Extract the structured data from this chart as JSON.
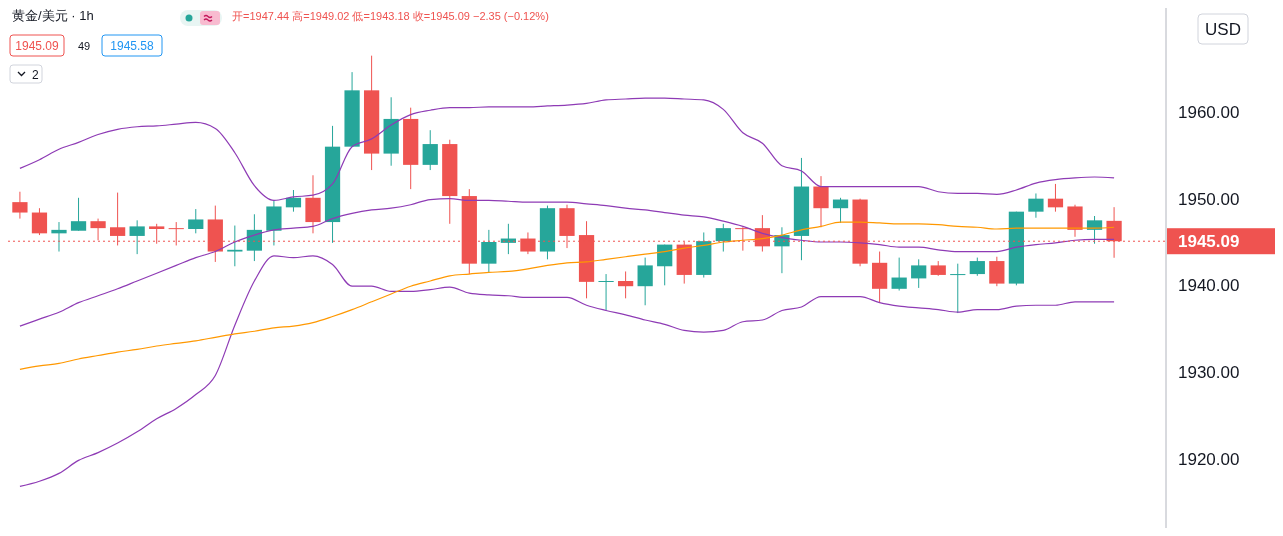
{
  "chart_data": {
    "type": "candlestick",
    "title": "黄金/美元 · 1h",
    "subtitle": "开=1947.44 高=1949.02 低=1943.18 收=1945.09 −2.35 (−0.12%)",
    "annotations": [
      "1945.09",
      "49",
      "1945.58",
      "2",
      "USD"
    ],
    "categories": [
      null,
      null,
      null,
      null,
      null,
      null,
      null,
      null,
      null,
      null,
      null,
      null,
      null,
      null,
      null,
      null,
      null,
      null,
      null,
      null,
      null,
      null,
      null,
      null,
      null,
      null,
      null,
      null,
      null,
      null,
      null,
      null,
      null,
      null,
      null,
      null,
      null,
      null,
      null,
      null,
      null,
      null,
      null,
      null,
      null,
      null,
      null,
      null,
      null,
      null,
      null,
      null,
      null,
      null,
      null,
      null,
      null
    ],
    "ohlc": [
      [
        1949.6,
        1950.8,
        1947.7,
        1948.4
      ],
      [
        1948.4,
        1948.9,
        1945.8,
        1946.0
      ],
      [
        1946.0,
        1947.3,
        1943.9,
        1946.4
      ],
      [
        1946.3,
        1950.1,
        1946.3,
        1947.4
      ],
      [
        1947.4,
        1947.7,
        1945.2,
        1946.6
      ],
      [
        1946.7,
        1950.7,
        1944.6,
        1945.7
      ],
      [
        1945.7,
        1947.5,
        1943.6,
        1946.8
      ],
      [
        1946.8,
        1947.1,
        1944.8,
        1946.5
      ],
      [
        1946.6,
        1947.3,
        1944.6,
        1946.5
      ],
      [
        1946.5,
        1948.8,
        1946.0,
        1947.6
      ],
      [
        1947.6,
        1949.2,
        1942.7,
        1943.9
      ],
      [
        1943.9,
        1946.9,
        1942.2,
        1944.1
      ],
      [
        1944.0,
        1948.2,
        1942.8,
        1946.4
      ],
      [
        1946.3,
        1949.8,
        1944.6,
        1949.1
      ],
      [
        1949.0,
        1951.0,
        1948.5,
        1950.1
      ],
      [
        1950.1,
        1952.7,
        1946.0,
        1947.3
      ],
      [
        1947.3,
        1958.4,
        1944.9,
        1956.0
      ],
      [
        1956.0,
        1964.6,
        1956.0,
        1962.5
      ],
      [
        1962.5,
        1966.5,
        1953.3,
        1955.2
      ],
      [
        1955.2,
        1961.7,
        1953.8,
        1959.2
      ],
      [
        1959.2,
        1960.5,
        1951.1,
        1953.9
      ],
      [
        1953.9,
        1957.9,
        1953.3,
        1956.3
      ],
      [
        1956.3,
        1956.8,
        1947.1,
        1950.3
      ],
      [
        1950.3,
        1951.1,
        1941.3,
        1942.5
      ],
      [
        1942.5,
        1946.4,
        1941.5,
        1945.0
      ],
      [
        1944.9,
        1947.1,
        1943.6,
        1945.4
      ],
      [
        1945.4,
        1946.1,
        1943.6,
        1943.9
      ],
      [
        1943.9,
        1949.2,
        1943.0,
        1948.9
      ],
      [
        1948.9,
        1949.3,
        1944.3,
        1945.7
      ],
      [
        1945.8,
        1947.4,
        1938.5,
        1940.4
      ],
      [
        1940.4,
        1941.3,
        1937.1,
        1940.5
      ],
      [
        1940.5,
        1941.6,
        1938.5,
        1939.9
      ],
      [
        1939.9,
        1943.2,
        1937.7,
        1942.3
      ],
      [
        1942.2,
        1944.7,
        1940.0,
        1944.7
      ],
      [
        1944.7,
        1945.0,
        1940.2,
        1941.2
      ],
      [
        1941.2,
        1946.1,
        1940.9,
        1945.1
      ],
      [
        1945.1,
        1947.1,
        1943.9,
        1946.6
      ],
      [
        1946.6,
        1946.7,
        1944.0,
        1946.5
      ],
      [
        1946.6,
        1948.1,
        1943.9,
        1944.5
      ],
      [
        1944.5,
        1946.7,
        1941.4,
        1945.8
      ],
      [
        1945.7,
        1954.7,
        1942.9,
        1951.4
      ],
      [
        1951.4,
        1952.6,
        1946.7,
        1948.9
      ],
      [
        1948.9,
        1950.1,
        1947.2,
        1949.9
      ],
      [
        1949.9,
        1950.0,
        1942.2,
        1942.5
      ],
      [
        1942.6,
        1943.9,
        1938.0,
        1939.6
      ],
      [
        1939.6,
        1943.2,
        1939.4,
        1940.9
      ],
      [
        1940.8,
        1943.0,
        1939.7,
        1942.3
      ],
      [
        1942.3,
        1942.8,
        1941.1,
        1941.2
      ],
      [
        1941.2,
        1942.5,
        1936.8,
        1941.3
      ],
      [
        1941.3,
        1943.2,
        1941.1,
        1942.8
      ],
      [
        1942.8,
        1943.3,
        1939.9,
        1940.2
      ],
      [
        1940.2,
        1948.5,
        1940.0,
        1948.5
      ],
      [
        1948.5,
        1950.6,
        1947.8,
        1950.0
      ],
      [
        1950.0,
        1951.7,
        1948.5,
        1949.0
      ],
      [
        1949.1,
        1949.3,
        1945.6,
        1946.4
      ],
      [
        1946.4,
        1948.0,
        1944.8,
        1947.5
      ],
      [
        1947.44,
        1949.02,
        1943.18,
        1945.09
      ]
    ],
    "colors": [
      "#ef5350",
      "#ef5350",
      "#26a69a",
      "#26a69a",
      "#ef5350",
      "#ef5350",
      "#26a69a",
      "#ef5350",
      "#ef5350",
      "#26a69a",
      "#ef5350",
      "#26a69a",
      "#26a69a",
      "#26a69a",
      "#26a69a",
      "#ef5350",
      "#26a69a",
      "#26a69a",
      "#ef5350",
      "#26a69a",
      "#ef5350",
      "#26a69a",
      "#ef5350",
      "#ef5350",
      "#26a69a",
      "#26a69a",
      "#ef5350",
      "#26a69a",
      "#ef5350",
      "#ef5350",
      "#26a69a",
      "#ef5350",
      "#26a69a",
      "#26a69a",
      "#ef5350",
      "#26a69a",
      "#26a69a",
      "#ef5350",
      "#ef5350",
      "#26a69a",
      "#26a69a",
      "#ef5350",
      "#26a69a",
      "#ef5350",
      "#ef5350",
      "#26a69a",
      "#26a69a",
      "#ef5350",
      "#26a69a",
      "#26a69a",
      "#ef5350",
      "#26a69a",
      "#26a69a",
      "#ef5350",
      "#ef5350",
      "#26a69a",
      "#ef5350"
    ],
    "series": [
      {
        "type": "line",
        "color": "#8e3bb5",
        "values": [
          1953.5,
          1954.5,
          1955.7,
          1956.5,
          1957.4,
          1958.0,
          1958.3,
          1958.4,
          1958.6,
          1958.8,
          1958.1,
          1955.3,
          1951.5,
          1949.8,
          1950.2,
          1950.4,
          1951.7,
          1956.0,
          1956.9,
          1958.5,
          1959.7,
          1960.2,
          1960.5,
          1960.5,
          1960.6,
          1960.6,
          1960.6,
          1960.7,
          1960.8,
          1961.0,
          1961.4,
          1961.5,
          1961.6,
          1961.6,
          1961.5,
          1961.4,
          1960.3,
          1957.6,
          1956.4,
          1953.8,
          1953.2,
          1951.4,
          1951.4,
          1951.4,
          1951.4,
          1951.4,
          1951.4,
          1950.8,
          1950.6,
          1950.6,
          1950.5,
          1951.0,
          1951.8,
          1952.2,
          1952.4,
          1952.5,
          1952.4
        ]
      },
      {
        "type": "line",
        "color": "#8e3bb5",
        "values": [
          1935.3,
          1936.1,
          1936.9,
          1938.0,
          1938.8,
          1939.6,
          1940.5,
          1941.4,
          1942.3,
          1943.2,
          1943.9,
          1945.0,
          1945.8,
          1946.4,
          1946.6,
          1946.8,
          1947.7,
          1948.3,
          1948.7,
          1948.9,
          1949.3,
          1949.9,
          1950.0,
          1949.8,
          1949.8,
          1949.7,
          1949.6,
          1949.6,
          1949.6,
          1949.4,
          1949.2,
          1948.9,
          1948.7,
          1948.4,
          1948.1,
          1947.9,
          1947.4,
          1946.8,
          1946.0,
          1945.5,
          1945.2,
          1945.0,
          1945.0,
          1944.9,
          1944.7,
          1944.4,
          1944.4,
          1944.1,
          1943.9,
          1943.9,
          1943.9,
          1944.4,
          1944.7,
          1944.9,
          1945.2,
          1945.3,
          1945.3
        ]
      },
      {
        "type": "line",
        "color": "#8e3bb5",
        "values": [
          1916.8,
          1917.4,
          1918.3,
          1919.8,
          1920.7,
          1921.8,
          1923.1,
          1924.6,
          1925.8,
          1927.4,
          1929.6,
          1935.4,
          1940.5,
          1943.4,
          1943.2,
          1943.4,
          1942.4,
          1939.9,
          1939.9,
          1939.3,
          1939.3,
          1939.5,
          1939.8,
          1939.1,
          1938.9,
          1938.8,
          1938.6,
          1938.6,
          1938.6,
          1937.7,
          1937.1,
          1936.6,
          1936.0,
          1935.5,
          1934.8,
          1934.6,
          1934.8,
          1935.8,
          1936.0,
          1937.1,
          1937.5,
          1938.7,
          1938.7,
          1938.7,
          1938.0,
          1937.6,
          1937.4,
          1937.2,
          1936.9,
          1937.2,
          1937.2,
          1937.6,
          1937.7,
          1937.7,
          1938.1,
          1938.1,
          1938.1
        ]
      },
      {
        "type": "line",
        "color": "#ff9800",
        "values": [
          1930.3,
          1930.7,
          1931.0,
          1931.5,
          1931.9,
          1932.3,
          1932.6,
          1933.0,
          1933.3,
          1933.6,
          1934.0,
          1934.4,
          1934.7,
          1935.1,
          1935.3,
          1935.7,
          1936.4,
          1937.2,
          1938.1,
          1939.0,
          1939.9,
          1940.5,
          1941.1,
          1941.3,
          1941.5,
          1941.6,
          1941.9,
          1942.3,
          1942.6,
          1942.7,
          1943.0,
          1943.3,
          1943.6,
          1943.9,
          1944.3,
          1944.6,
          1945.0,
          1945.2,
          1945.4,
          1945.8,
          1946.4,
          1946.8,
          1947.3,
          1947.3,
          1947.2,
          1947.1,
          1947.1,
          1947.0,
          1946.8,
          1946.7,
          1946.5,
          1946.6,
          1946.6,
          1946.6,
          1946.6,
          1946.6,
          1946.7
        ]
      }
    ],
    "ylim": [
      1912,
      1972
    ],
    "yticks": [
      {
        "value": 1920,
        "label": "1920.00"
      },
      {
        "value": 1930,
        "label": "1930.00"
      },
      {
        "value": 1940,
        "label": "1940.00"
      },
      {
        "value": 1950,
        "label": "1950.00"
      },
      {
        "value": 1960,
        "label": "1960.00"
      }
    ],
    "ref_lines": [
      {
        "axis": "y",
        "value": 1945.09,
        "label": "1945.09",
        "color": "#ef5350",
        "line_style": "dotted"
      }
    ],
    "grid": false
  }
}
